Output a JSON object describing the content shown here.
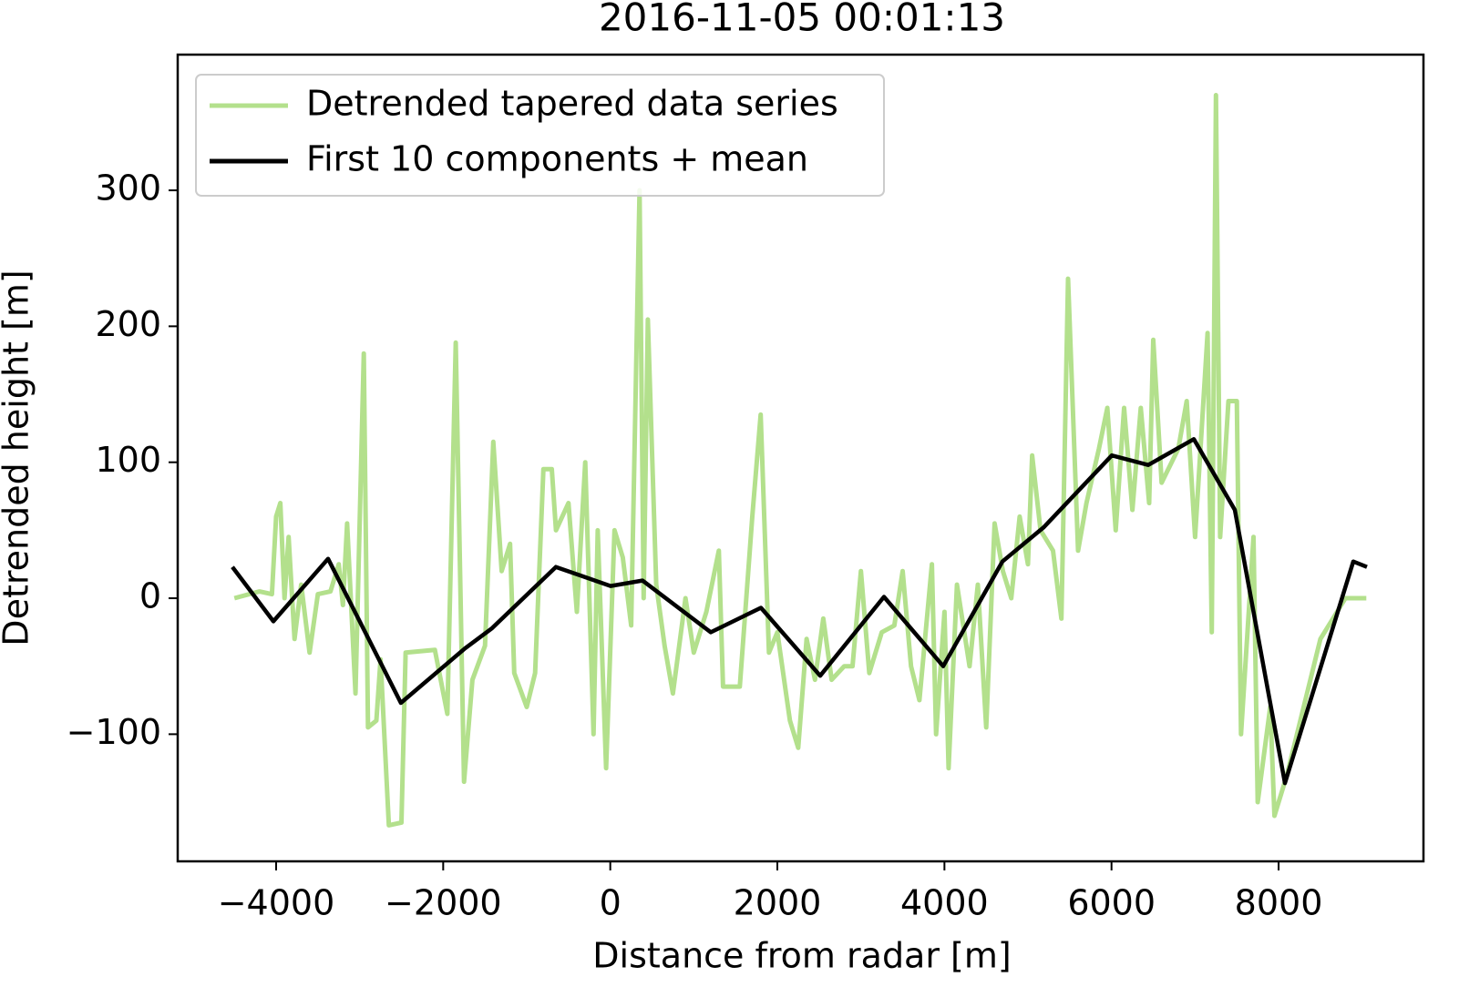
{
  "chart_data": {
    "type": "line",
    "title": "2016-11-05 00:01:13",
    "x_label": "Distance from radar [m]",
    "y_label": "Detrended height [m]",
    "xlim": [
      -5178,
      9734
    ],
    "ylim": [
      -193.5,
      399.8
    ],
    "xticks": [
      {
        "value": -4000,
        "label": "−4000"
      },
      {
        "value": -2000,
        "label": "−2000"
      },
      0,
      2000,
      4000,
      6000,
      8000
    ],
    "yticks": [
      {
        "value": -100,
        "label": "−100"
      },
      0,
      100,
      200,
      300
    ],
    "legend": "upper left",
    "series": [
      {
        "name": "Detrended tapered data series",
        "color": "#b3e08c",
        "x": [
          -4500,
          -4200,
          -4050,
          -4000,
          -3950,
          -3900,
          -3850,
          -3780,
          -3700,
          -3600,
          -3500,
          -3350,
          -3250,
          -3200,
          -3150,
          -3050,
          -2950,
          -2900,
          -2800,
          -2750,
          -2650,
          -2500,
          -2450,
          -2100,
          -1950,
          -1850,
          -1750,
          -1650,
          -1500,
          -1400,
          -1300,
          -1200,
          -1150,
          -1000,
          -900,
          -800,
          -700,
          -650,
          -500,
          -400,
          -300,
          -200,
          -150,
          -50,
          50,
          150,
          250,
          350,
          400,
          450,
          550,
          650,
          750,
          900,
          1000,
          1150,
          1300,
          1350,
          1550,
          1700,
          1800,
          1900,
          2000,
          2150,
          2250,
          2350,
          2450,
          2550,
          2650,
          2800,
          2900,
          3000,
          3100,
          3250,
          3400,
          3500,
          3600,
          3700,
          3850,
          3900,
          4000,
          4050,
          4150,
          4300,
          4400,
          4500,
          4600,
          4700,
          4800,
          4900,
          5000,
          5050,
          5150,
          5300,
          5400,
          5480,
          5600,
          5700,
          5850,
          5950,
          6050,
          6150,
          6250,
          6350,
          6450,
          6500,
          6600,
          6800,
          6900,
          7000,
          7150,
          7200,
          7250,
          7300,
          7400,
          7500,
          7550,
          7700,
          7750,
          7900,
          7950,
          8100,
          8500,
          8800,
          9050
        ],
        "values": [
          0,
          5,
          3,
          60,
          70,
          0,
          45,
          -30,
          10,
          -40,
          3,
          5,
          25,
          -5,
          55,
          -70,
          180,
          -95,
          -90,
          -45,
          -167,
          -165,
          -40,
          -38,
          -85,
          188,
          -135,
          -60,
          -35,
          115,
          20,
          40,
          -55,
          -80,
          -55,
          95,
          95,
          50,
          70,
          -10,
          100,
          -100,
          50,
          -125,
          50,
          30,
          -20,
          300,
          0,
          205,
          10,
          -35,
          -70,
          0,
          -40,
          -10,
          35,
          -65,
          -65,
          60,
          135,
          -40,
          -25,
          -90,
          -110,
          -30,
          -60,
          -15,
          -60,
          -50,
          -50,
          20,
          -55,
          -25,
          -20,
          20,
          -50,
          -75,
          25,
          -100,
          -10,
          -125,
          10,
          -50,
          10,
          -95,
          55,
          20,
          0,
          60,
          25,
          105,
          50,
          35,
          -15,
          235,
          35,
          70,
          110,
          140,
          50,
          140,
          65,
          140,
          70,
          190,
          85,
          110,
          145,
          45,
          195,
          -25,
          370,
          45,
          145,
          145,
          -100,
          45,
          -150,
          -80,
          -160,
          -130,
          -30,
          0,
          0
        ]
      },
      {
        "name": "First 10 components + mean",
        "color": "#000000",
        "x": [
          -4524,
          -4033,
          -3378,
          -2506,
          -1742,
          -1415,
          -651,
          4,
          385,
          1204,
          1803,
          2513,
          3276,
          3985,
          4694,
          5185,
          6003,
          6440,
          6985,
          7476,
          8076,
          8894,
          9058
        ],
        "values": [
          23,
          -17,
          29,
          -77,
          -37,
          -22,
          23,
          9,
          13,
          -25,
          -7,
          -57,
          1,
          -50,
          27,
          52,
          105,
          98,
          117,
          65,
          -136,
          27,
          23
        ]
      }
    ]
  }
}
